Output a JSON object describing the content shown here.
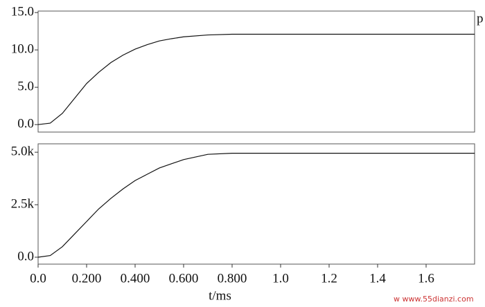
{
  "chart_data": [
    {
      "type": "line",
      "annotation": "p",
      "x": [
        0,
        0.05,
        0.1,
        0.15,
        0.2,
        0.25,
        0.3,
        0.35,
        0.4,
        0.45,
        0.5,
        0.55,
        0.6,
        0.7,
        0.8,
        1.0,
        1.2,
        1.4,
        1.6,
        1.8
      ],
      "values": [
        0,
        0.2,
        1.5,
        3.5,
        5.5,
        7,
        8.3,
        9.3,
        10.1,
        10.7,
        11.2,
        11.5,
        11.75,
        12.0,
        12.1,
        12.1,
        12.1,
        12.1,
        12.1,
        12.1
      ],
      "color": "#111111",
      "xlim": [
        0,
        1.8
      ],
      "ylim": [
        -1,
        15.2
      ],
      "yticks": [
        {
          "value": 0,
          "label": "0.0"
        },
        {
          "value": 5,
          "label": "5.0"
        },
        {
          "value": 10,
          "label": "10.0"
        },
        {
          "value": 15,
          "label": "15.0"
        }
      ]
    },
    {
      "type": "line",
      "xlabel": "t/ms",
      "x": [
        0,
        0.05,
        0.1,
        0.15,
        0.2,
        0.25,
        0.3,
        0.35,
        0.4,
        0.45,
        0.5,
        0.55,
        0.6,
        0.7,
        0.8,
        1.0,
        1.2,
        1.4,
        1.6,
        1.8
      ],
      "values": [
        0,
        80,
        500,
        1100,
        1700,
        2300,
        2800,
        3250,
        3650,
        3950,
        4250,
        4450,
        4650,
        4900,
        4950,
        4950,
        4950,
        4950,
        4950,
        4950
      ],
      "color": "#111111",
      "xlim": [
        0,
        1.8
      ],
      "ylim": [
        -330,
        5400
      ],
      "yticks": [
        {
          "value": 0,
          "label": "0.0"
        },
        {
          "value": 2500,
          "label": "2.5k"
        },
        {
          "value": 5000,
          "label": "5.0k"
        }
      ],
      "xticks": [
        {
          "value": 0,
          "label": "0.0"
        },
        {
          "value": 0.2,
          "label": "0.200"
        },
        {
          "value": 0.4,
          "label": "0.400"
        },
        {
          "value": 0.6,
          "label": "0.600"
        },
        {
          "value": 0.8,
          "label": "0.800"
        },
        {
          "value": 1.0,
          "label": "1.0"
        },
        1.2,
        1.4,
        1.6
      ]
    }
  ],
  "watermark": "w   www.55dianzi.com"
}
